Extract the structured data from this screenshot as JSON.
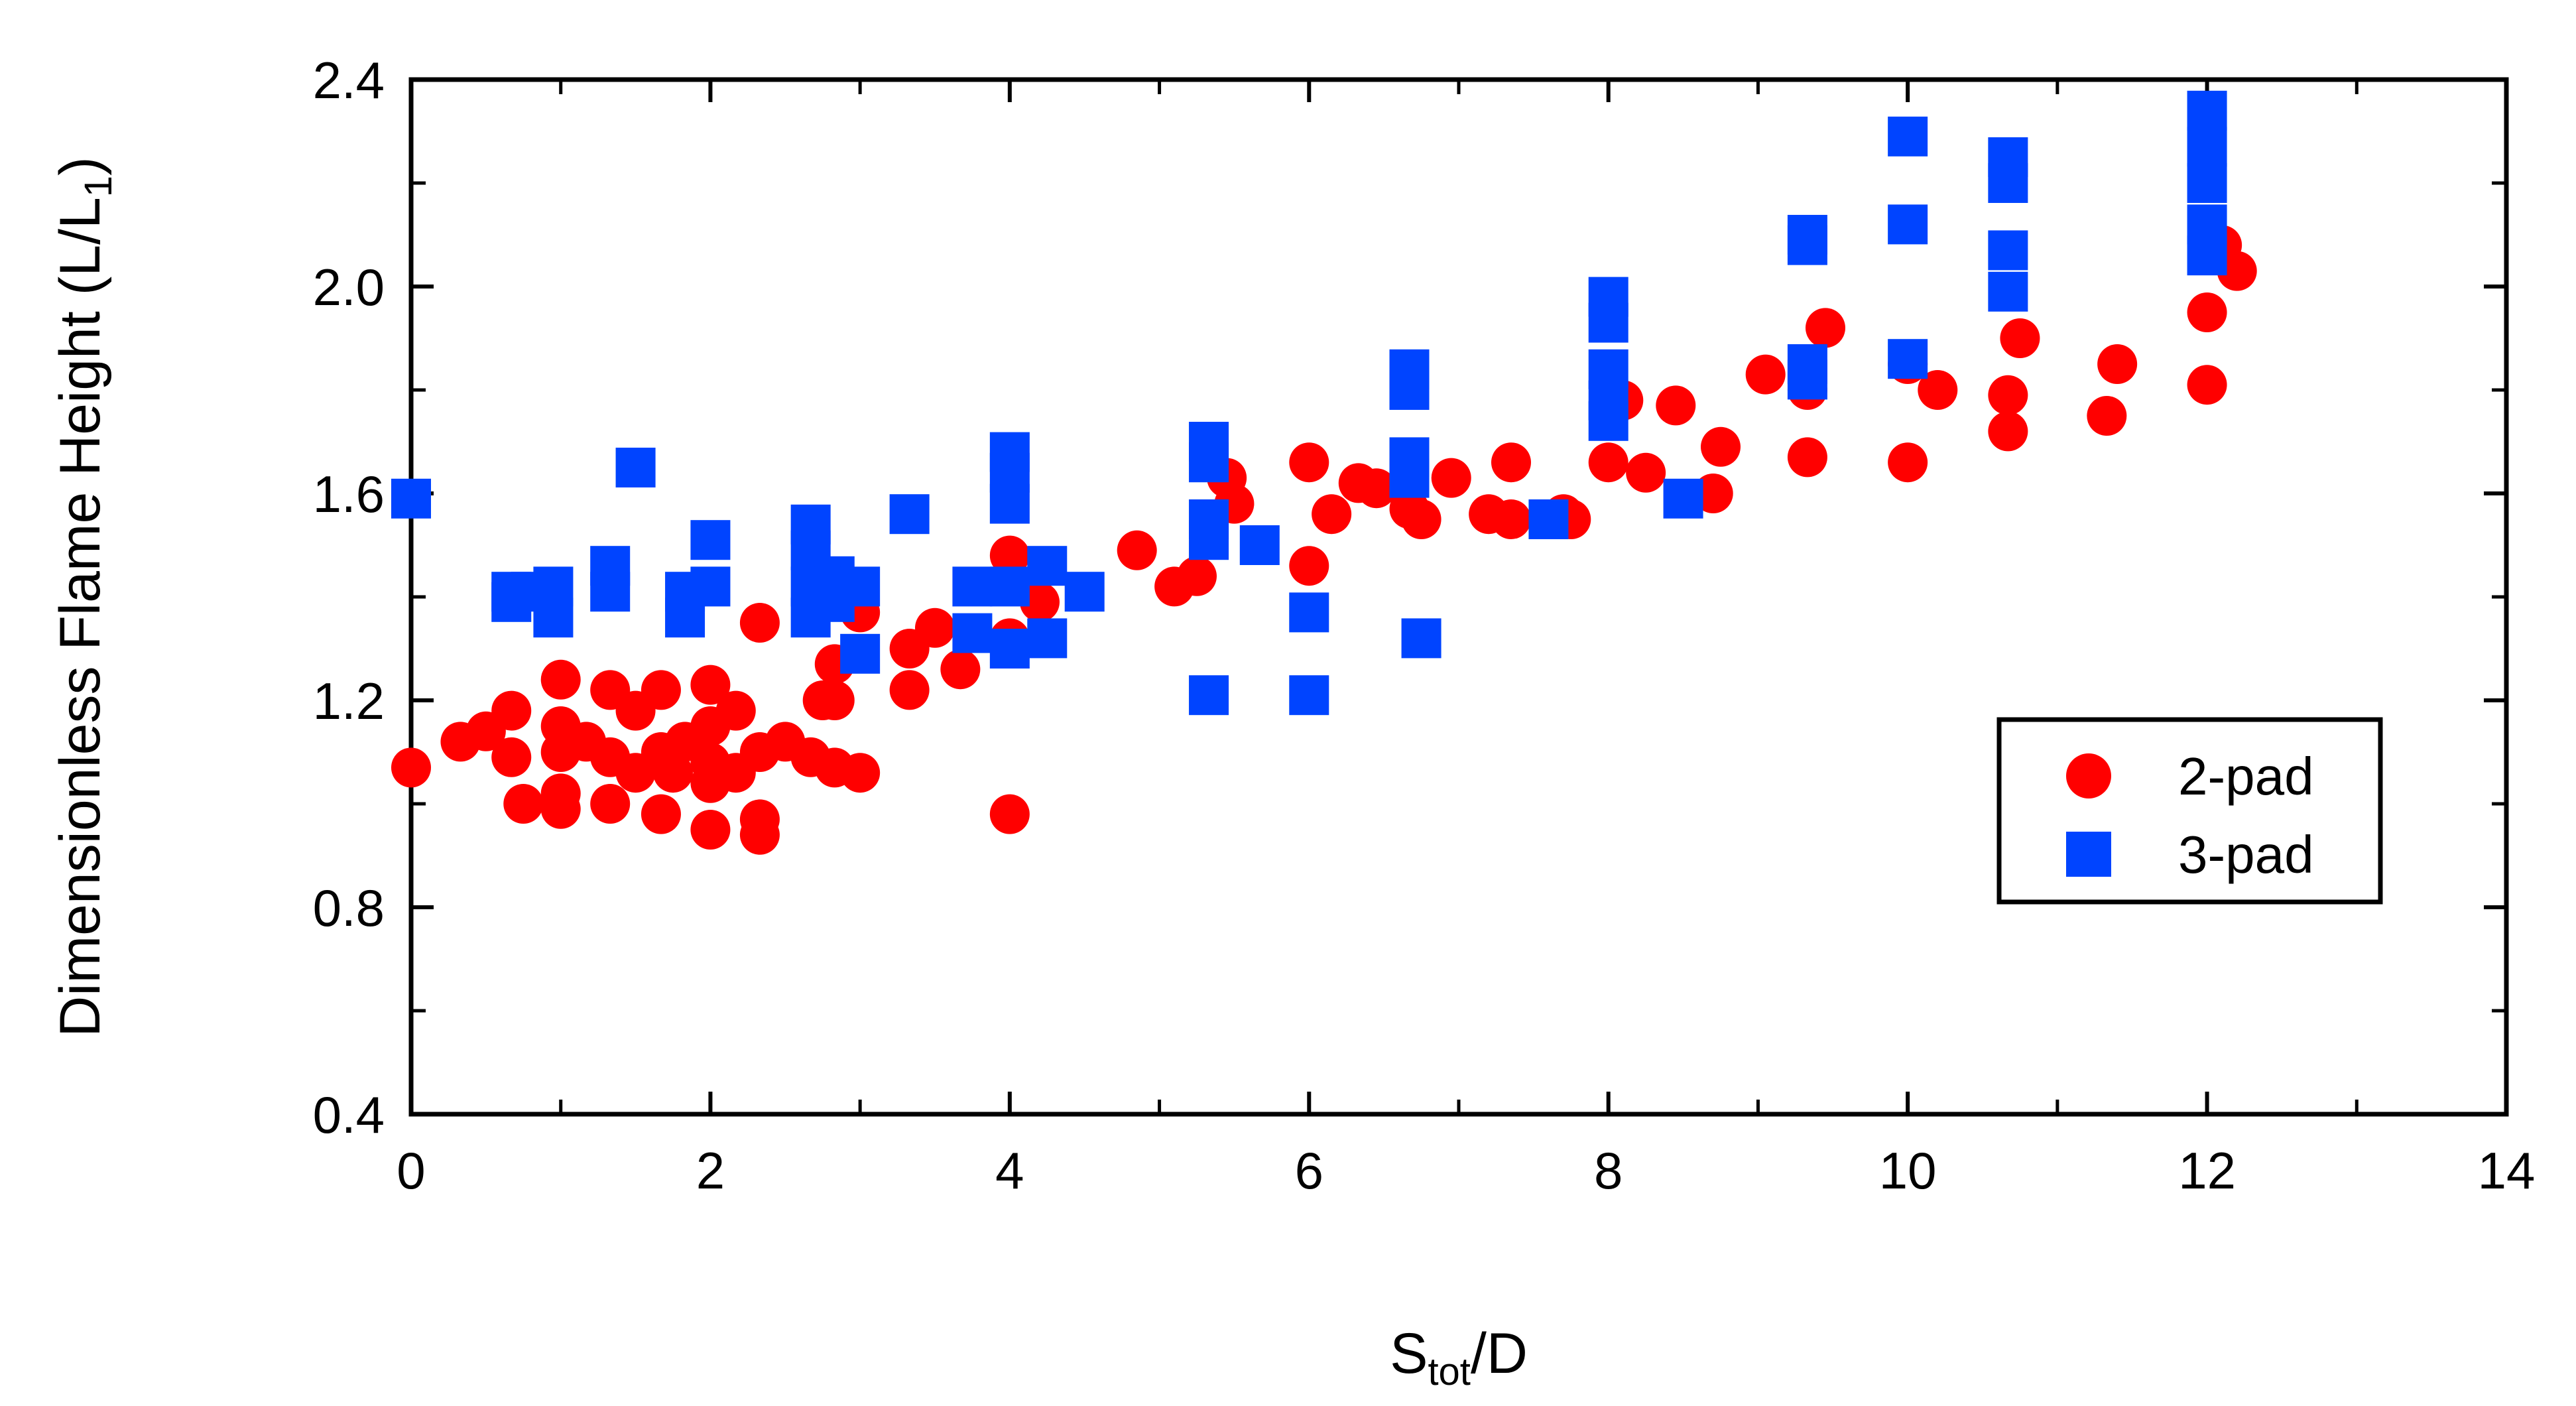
{
  "chart_data": {
    "type": "scatter",
    "title": "",
    "xlabel": {
      "main": "S",
      "sub": "tot",
      "rest": "/D"
    },
    "ylabel": {
      "main": "Dimensionless Flame Height (L/L",
      "sub": "1",
      "rest": ")"
    },
    "xlim": [
      0,
      14
    ],
    "ylim": [
      0.4,
      2.4
    ],
    "x_ticks": [
      0,
      2,
      4,
      6,
      8,
      10,
      12,
      14
    ],
    "y_ticks": [
      0.4,
      0.8,
      1.2,
      1.6,
      2.0,
      2.4
    ],
    "x_tick_labels": [
      "0",
      "2",
      "4",
      "6",
      "8",
      "10",
      "12",
      "14"
    ],
    "y_tick_labels": [
      "0.4",
      "0.8",
      "1.2",
      "1.6",
      "2.0",
      "2.4"
    ],
    "grid": false,
    "legend_position": "lower-right",
    "series": [
      {
        "name": "2-pad",
        "marker": "circle",
        "color": "#ff0000",
        "points": [
          [
            0,
            1.07
          ],
          [
            0.33,
            1.12
          ],
          [
            0.5,
            1.14
          ],
          [
            0.67,
            1.18
          ],
          [
            0.67,
            1.09
          ],
          [
            0.75,
            1.0
          ],
          [
            1.0,
            1.24
          ],
          [
            1.0,
            1.15
          ],
          [
            1.0,
            1.1
          ],
          [
            1.0,
            0.99
          ],
          [
            1.0,
            1.02
          ],
          [
            1.17,
            1.12
          ],
          [
            1.33,
            1.22
          ],
          [
            1.33,
            1.09
          ],
          [
            1.33,
            1.0
          ],
          [
            1.5,
            1.18
          ],
          [
            1.5,
            1.06
          ],
          [
            1.67,
            1.22
          ],
          [
            1.67,
            1.1
          ],
          [
            1.67,
            0.98
          ],
          [
            1.75,
            1.06
          ],
          [
            1.83,
            1.12
          ],
          [
            2.0,
            1.23
          ],
          [
            2.0,
            1.15
          ],
          [
            2.0,
            1.08
          ],
          [
            2.0,
            1.04
          ],
          [
            2.0,
            0.95
          ],
          [
            2.17,
            1.18
          ],
          [
            2.17,
            1.06
          ],
          [
            2.33,
            1.35
          ],
          [
            2.33,
            1.1
          ],
          [
            2.33,
            0.97
          ],
          [
            2.33,
            0.94
          ],
          [
            2.5,
            1.12
          ],
          [
            2.67,
            1.09
          ],
          [
            2.75,
            1.2
          ],
          [
            2.83,
            1.27
          ],
          [
            2.83,
            1.2
          ],
          [
            2.83,
            1.07
          ],
          [
            3.0,
            1.37
          ],
          [
            3.0,
            1.06
          ],
          [
            3.33,
            1.3
          ],
          [
            3.33,
            1.22
          ],
          [
            3.5,
            1.34
          ],
          [
            3.67,
            1.26
          ],
          [
            4.0,
            1.48
          ],
          [
            4.0,
            1.32
          ],
          [
            4.0,
            0.98
          ],
          [
            4.2,
            1.39
          ],
          [
            4.85,
            1.49
          ],
          [
            5.1,
            1.42
          ],
          [
            5.25,
            1.44
          ],
          [
            5.5,
            1.58
          ],
          [
            5.45,
            1.63
          ],
          [
            6.0,
            1.66
          ],
          [
            6.0,
            1.46
          ],
          [
            6.15,
            1.56
          ],
          [
            6.33,
            1.62
          ],
          [
            6.45,
            1.61
          ],
          [
            6.67,
            1.57
          ],
          [
            6.75,
            1.55
          ],
          [
            6.95,
            1.63
          ],
          [
            7.2,
            1.56
          ],
          [
            7.35,
            1.66
          ],
          [
            7.35,
            1.55
          ],
          [
            7.7,
            1.56
          ],
          [
            7.75,
            1.55
          ],
          [
            8.0,
            1.66
          ],
          [
            8.1,
            1.78
          ],
          [
            8.25,
            1.64
          ],
          [
            8.45,
            1.77
          ],
          [
            8.7,
            1.6
          ],
          [
            8.75,
            1.69
          ],
          [
            9.05,
            1.83
          ],
          [
            9.33,
            1.8
          ],
          [
            9.33,
            1.67
          ],
          [
            9.45,
            1.92
          ],
          [
            10.0,
            1.66
          ],
          [
            10.0,
            1.85
          ],
          [
            10.2,
            1.8
          ],
          [
            10.67,
            1.79
          ],
          [
            10.67,
            1.72
          ],
          [
            10.75,
            1.9
          ],
          [
            11.33,
            1.75
          ],
          [
            11.4,
            1.85
          ],
          [
            12.0,
            1.95
          ],
          [
            12.0,
            1.81
          ],
          [
            12.1,
            2.08
          ],
          [
            12.2,
            2.03
          ]
        ]
      },
      {
        "name": "3-pad",
        "marker": "square",
        "color": "#0044ff",
        "points": [
          [
            0,
            1.59
          ],
          [
            0.67,
            1.41
          ],
          [
            0.67,
            1.39
          ],
          [
            0.8,
            1.41
          ],
          [
            0.95,
            1.42
          ],
          [
            0.95,
            1.36
          ],
          [
            1.33,
            1.46
          ],
          [
            1.33,
            1.41
          ],
          [
            1.5,
            1.65
          ],
          [
            1.83,
            1.41
          ],
          [
            1.83,
            1.36
          ],
          [
            2.0,
            1.51
          ],
          [
            2.0,
            1.42
          ],
          [
            2.67,
            1.54
          ],
          [
            2.67,
            1.49
          ],
          [
            2.67,
            1.42
          ],
          [
            2.67,
            1.36
          ],
          [
            2.83,
            1.44
          ],
          [
            2.83,
            1.39
          ],
          [
            3.0,
            1.42
          ],
          [
            3.0,
            1.29
          ],
          [
            3.33,
            1.56
          ],
          [
            3.75,
            1.42
          ],
          [
            3.75,
            1.33
          ],
          [
            4.0,
            1.68
          ],
          [
            4.0,
            1.64
          ],
          [
            4.0,
            1.58
          ],
          [
            4.0,
            1.42
          ],
          [
            4.0,
            1.3
          ],
          [
            4.25,
            1.46
          ],
          [
            4.25,
            1.32
          ],
          [
            4.5,
            1.41
          ],
          [
            5.33,
            1.7
          ],
          [
            5.33,
            1.66
          ],
          [
            5.33,
            1.55
          ],
          [
            5.33,
            1.51
          ],
          [
            5.33,
            1.21
          ],
          [
            5.67,
            1.5
          ],
          [
            6.0,
            1.37
          ],
          [
            6.0,
            1.21
          ],
          [
            6.67,
            1.84
          ],
          [
            6.67,
            1.8
          ],
          [
            6.67,
            1.67
          ],
          [
            6.67,
            1.63
          ],
          [
            6.75,
            1.32
          ],
          [
            7.6,
            1.55
          ],
          [
            8.0,
            1.98
          ],
          [
            8.0,
            1.93
          ],
          [
            8.0,
            1.84
          ],
          [
            8.0,
            1.78
          ],
          [
            8.0,
            1.74
          ],
          [
            8.5,
            1.59
          ],
          [
            9.33,
            2.1
          ],
          [
            9.33,
            2.08
          ],
          [
            9.33,
            1.85
          ],
          [
            9.33,
            1.82
          ],
          [
            10.0,
            2.29
          ],
          [
            10.0,
            2.12
          ],
          [
            10.0,
            1.86
          ],
          [
            10.67,
            2.25
          ],
          [
            10.67,
            2.2
          ],
          [
            10.67,
            2.07
          ],
          [
            10.67,
            1.99
          ],
          [
            12.0,
            2.34
          ],
          [
            12.0,
            2.27
          ],
          [
            12.0,
            2.2
          ],
          [
            12.0,
            2.12
          ],
          [
            12.0,
            2.06
          ]
        ]
      }
    ]
  }
}
